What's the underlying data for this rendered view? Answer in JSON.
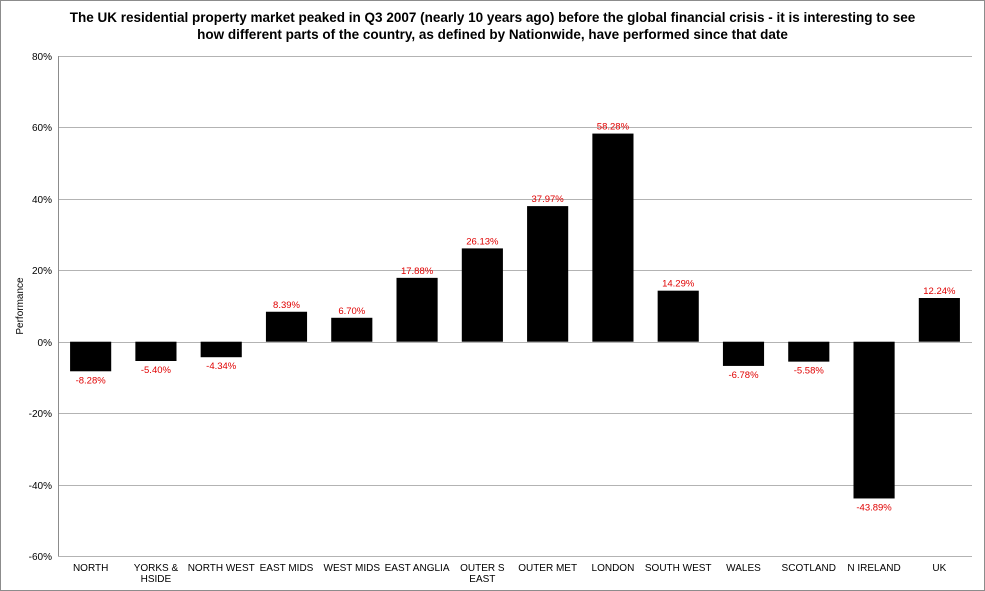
{
  "chart_data": {
    "type": "bar",
    "title": "The UK residential property market peaked in Q3 2007 (nearly 10 years ago) before the global financial crisis - it is interesting to see how different parts of the country, as defined by Nationwide, have performed since that date",
    "ylabel": "Performance",
    "xlabel": "",
    "categories": [
      "NORTH",
      "YORKS & HSIDE",
      "NORTH WEST",
      "EAST MIDS",
      "WEST MIDS",
      "EAST ANGLIA",
      "OUTER S EAST",
      "OUTER MET",
      "LONDON",
      "SOUTH WEST",
      "WALES",
      "SCOTLAND",
      "N IRELAND",
      "UK"
    ],
    "category_lines": [
      [
        "NORTH"
      ],
      [
        "YORKS &",
        "HSIDE"
      ],
      [
        "NORTH WEST"
      ],
      [
        "EAST MIDS"
      ],
      [
        "WEST MIDS"
      ],
      [
        "EAST ANGLIA"
      ],
      [
        "OUTER S",
        "EAST"
      ],
      [
        "OUTER MET"
      ],
      [
        "LONDON"
      ],
      [
        "SOUTH WEST"
      ],
      [
        "WALES"
      ],
      [
        "SCOTLAND"
      ],
      [
        "N IRELAND"
      ],
      [
        "UK"
      ]
    ],
    "values": [
      -8.28,
      -5.4,
      -4.34,
      8.39,
      6.7,
      17.88,
      26.13,
      37.97,
      58.28,
      14.29,
      -6.78,
      -5.58,
      -43.89,
      12.24
    ],
    "data_labels": [
      "-8.28%",
      "-5.40%",
      "-4.34%",
      "8.39%",
      "6.70%",
      "17.88%",
      "26.13%",
      "37.97%",
      "58.28%",
      "14.29%",
      "-6.78%",
      "-5.58%",
      "-43.89%",
      "12.24%"
    ],
    "ylim": [
      -60,
      80
    ],
    "yticks": [
      -60,
      -40,
      -20,
      0,
      20,
      40,
      60,
      80
    ],
    "ytick_labels": [
      "-60%",
      "-40%",
      "-20%",
      "0%",
      "20%",
      "40%",
      "60%",
      "80%"
    ],
    "grid": true,
    "legend": "none",
    "bar_color": "#000000",
    "label_color": "#e00000",
    "grid_color": "#b3b3b3"
  }
}
